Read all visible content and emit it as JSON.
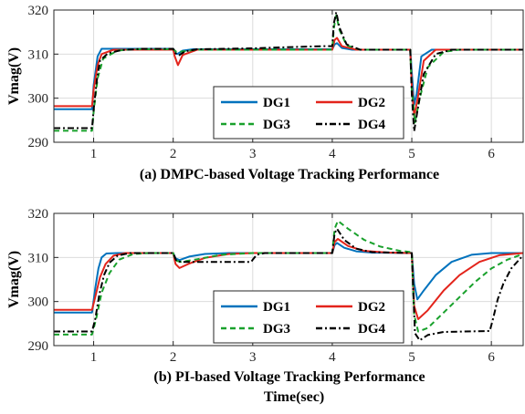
{
  "chart_data": [
    {
      "type": "line",
      "title": "(a) DMPC-based Voltage Tracking Performance",
      "ylabel": "Vmag(V)",
      "xlabel": "",
      "xlim": [
        0.5,
        6.4
      ],
      "ylim": [
        290,
        320
      ],
      "x_ticks": [
        "1",
        "2",
        "3",
        "4",
        "5",
        "6"
      ],
      "y_ticks": [
        "290",
        "300",
        "310",
        "320"
      ],
      "grid": true,
      "legend_position": "bottom-center",
      "series": [
        {
          "name": "DG1",
          "color": "#0072BD",
          "dash": "solid",
          "points": [
            [
              0.5,
              297.5
            ],
            [
              0.98,
              297.5
            ],
            [
              1.0,
              303
            ],
            [
              1.05,
              309.5
            ],
            [
              1.1,
              311.2
            ],
            [
              1.3,
              311.2
            ],
            [
              2.0,
              311.2
            ],
            [
              2.02,
              310.4
            ],
            [
              2.05,
              310.0
            ],
            [
              2.12,
              310.8
            ],
            [
              2.25,
              311.1
            ],
            [
              4.0,
              311.1
            ],
            [
              4.03,
              312.2
            ],
            [
              4.06,
              312.5
            ],
            [
              4.12,
              311.4
            ],
            [
              4.25,
              311.0
            ],
            [
              4.98,
              311.0
            ],
            [
              5.0,
              306
            ],
            [
              5.03,
              298.5
            ],
            [
              5.06,
              301
            ],
            [
              5.12,
              309.5
            ],
            [
              5.25,
              311.0
            ],
            [
              6.4,
              311.0
            ]
          ]
        },
        {
          "name": "DG2",
          "color": "#E3241B",
          "dash": "solid",
          "points": [
            [
              0.5,
              298.2
            ],
            [
              0.98,
              298.2
            ],
            [
              1.0,
              302
            ],
            [
              1.05,
              307.5
            ],
            [
              1.1,
              310
            ],
            [
              1.25,
              311
            ],
            [
              2.0,
              311.0
            ],
            [
              2.02,
              309.5
            ],
            [
              2.06,
              307.5
            ],
            [
              2.12,
              309.8
            ],
            [
              2.3,
              311.0
            ],
            [
              4.0,
              311.0
            ],
            [
              4.03,
              313.2
            ],
            [
              4.06,
              313.7
            ],
            [
              4.12,
              311.8
            ],
            [
              4.3,
              311.0
            ],
            [
              4.98,
              311.0
            ],
            [
              5.0,
              303
            ],
            [
              5.03,
              296
            ],
            [
              5.07,
              299.5
            ],
            [
              5.15,
              308.5
            ],
            [
              5.3,
              311.0
            ],
            [
              6.4,
              311.0
            ]
          ]
        },
        {
          "name": "DG3",
          "color": "#19A12C",
          "dash": "6,4",
          "points": [
            [
              0.5,
              292.6
            ],
            [
              0.98,
              292.6
            ],
            [
              1.0,
              297
            ],
            [
              1.05,
              304.5
            ],
            [
              1.12,
              309
            ],
            [
              1.3,
              310.8
            ],
            [
              1.5,
              311.1
            ],
            [
              2.0,
              311.1
            ],
            [
              2.04,
              310.5
            ],
            [
              2.12,
              310.6
            ],
            [
              2.3,
              311.0
            ],
            [
              4.0,
              311.0
            ],
            [
              4.02,
              316
            ],
            [
              4.05,
              318.8
            ],
            [
              4.09,
              315.5
            ],
            [
              4.18,
              312
            ],
            [
              4.35,
              311.0
            ],
            [
              4.98,
              311.0
            ],
            [
              5.0,
              302
            ],
            [
              5.04,
              294.5
            ],
            [
              5.1,
              300
            ],
            [
              5.2,
              307
            ],
            [
              5.4,
              310.5
            ],
            [
              5.6,
              311.0
            ],
            [
              6.4,
              311.0
            ]
          ]
        },
        {
          "name": "DG4",
          "color": "#000000",
          "dash": "7,3,2,3",
          "points": [
            [
              0.5,
              293.2
            ],
            [
              0.98,
              293.2
            ],
            [
              1.0,
              297.5
            ],
            [
              1.04,
              304
            ],
            [
              1.08,
              308.5
            ],
            [
              1.18,
              310.2
            ],
            [
              1.35,
              310.9
            ],
            [
              1.6,
              311.2
            ],
            [
              2.0,
              311.2
            ],
            [
              2.03,
              310.2
            ],
            [
              2.07,
              309.7
            ],
            [
              2.15,
              310.6
            ],
            [
              2.3,
              311.1
            ],
            [
              3.0,
              311.3
            ],
            [
              3.5,
              311.6
            ],
            [
              3.9,
              311.8
            ],
            [
              4.0,
              311.8
            ],
            [
              4.02,
              317
            ],
            [
              4.05,
              319.5
            ],
            [
              4.09,
              316
            ],
            [
              4.18,
              312.2
            ],
            [
              4.35,
              311.0
            ],
            [
              4.98,
              311.0
            ],
            [
              5.0,
              301
            ],
            [
              5.03,
              292.5
            ],
            [
              5.07,
              297
            ],
            [
              5.15,
              305.5
            ],
            [
              5.3,
              310
            ],
            [
              5.5,
              311.0
            ],
            [
              6.4,
              311.0
            ]
          ]
        }
      ]
    },
    {
      "type": "line",
      "title": "(b) PI-based Voltage Tracking Performance",
      "ylabel": "Vmag(V)",
      "xlabel": "Time(sec)",
      "xlim": [
        0.5,
        6.4
      ],
      "ylim": [
        290,
        320
      ],
      "x_ticks": [
        "1",
        "2",
        "3",
        "4",
        "5",
        "6"
      ],
      "y_ticks": [
        "290",
        "300",
        "310",
        "320"
      ],
      "grid": true,
      "legend_position": "bottom-center",
      "series": [
        {
          "name": "DG1",
          "color": "#0072BD",
          "dash": "solid",
          "points": [
            [
              0.5,
              297.5
            ],
            [
              0.98,
              297.5
            ],
            [
              1.02,
              303
            ],
            [
              1.06,
              307.5
            ],
            [
              1.1,
              310
            ],
            [
              1.16,
              310.9
            ],
            [
              1.3,
              311.0
            ],
            [
              2.0,
              311.0
            ],
            [
              2.03,
              309.8
            ],
            [
              2.08,
              309.4
            ],
            [
              2.2,
              310.2
            ],
            [
              2.4,
              310.8
            ],
            [
              2.7,
              311.0
            ],
            [
              4.0,
              311.0
            ],
            [
              4.03,
              312.8
            ],
            [
              4.06,
              313.3
            ],
            [
              4.15,
              312.2
            ],
            [
              4.3,
              311.4
            ],
            [
              4.5,
              311.1
            ],
            [
              5.0,
              311.0
            ],
            [
              5.03,
              304
            ],
            [
              5.07,
              300.5
            ],
            [
              5.15,
              302.5
            ],
            [
              5.3,
              306
            ],
            [
              5.5,
              309
            ],
            [
              5.75,
              310.6
            ],
            [
              6.0,
              311.0
            ],
            [
              6.4,
              311.0
            ]
          ]
        },
        {
          "name": "DG2",
          "color": "#E3241B",
          "dash": "solid",
          "points": [
            [
              0.5,
              298.1
            ],
            [
              0.98,
              298.1
            ],
            [
              1.02,
              301
            ],
            [
              1.08,
              305.5
            ],
            [
              1.15,
              308.5
            ],
            [
              1.25,
              310.4
            ],
            [
              1.4,
              311.0
            ],
            [
              2.0,
              311.0
            ],
            [
              2.03,
              308.5
            ],
            [
              2.08,
              307.6
            ],
            [
              2.2,
              308.6
            ],
            [
              2.4,
              309.9
            ],
            [
              2.7,
              310.8
            ],
            [
              3.0,
              311.0
            ],
            [
              4.0,
              311.0
            ],
            [
              4.03,
              313.5
            ],
            [
              4.07,
              314.2
            ],
            [
              4.2,
              312.6
            ],
            [
              4.4,
              311.5
            ],
            [
              4.7,
              311.1
            ],
            [
              5.0,
              311.0
            ],
            [
              5.03,
              299
            ],
            [
              5.08,
              296
            ],
            [
              5.2,
              298
            ],
            [
              5.4,
              302.5
            ],
            [
              5.6,
              306
            ],
            [
              5.85,
              309
            ],
            [
              6.1,
              310.5
            ],
            [
              6.4,
              311.0
            ]
          ]
        },
        {
          "name": "DG3",
          "color": "#19A12C",
          "dash": "6,4",
          "points": [
            [
              0.5,
              292.5
            ],
            [
              0.98,
              292.5
            ],
            [
              1.03,
              296
            ],
            [
              1.1,
              302
            ],
            [
              1.2,
              306.5
            ],
            [
              1.32,
              309.5
            ],
            [
              1.5,
              310.8
            ],
            [
              1.7,
              311.0
            ],
            [
              2.0,
              311.0
            ],
            [
              2.03,
              309.3
            ],
            [
              2.1,
              309.0
            ],
            [
              2.3,
              309.6
            ],
            [
              2.6,
              310.6
            ],
            [
              3.0,
              311.0
            ],
            [
              4.0,
              311.0
            ],
            [
              4.03,
              316.5
            ],
            [
              4.07,
              318.3
            ],
            [
              4.2,
              316.5
            ],
            [
              4.4,
              314
            ],
            [
              4.6,
              312.5
            ],
            [
              4.85,
              311.5
            ],
            [
              5.0,
              311.2
            ],
            [
              5.03,
              297
            ],
            [
              5.08,
              293.2
            ],
            [
              5.2,
              294
            ],
            [
              5.4,
              297.5
            ],
            [
              5.6,
              301
            ],
            [
              5.8,
              304.5
            ],
            [
              6.0,
              307.5
            ],
            [
              6.2,
              309.5
            ],
            [
              6.4,
              310.8
            ]
          ]
        },
        {
          "name": "DG4",
          "color": "#000000",
          "dash": "7,3,2,3",
          "points": [
            [
              0.5,
              293.2
            ],
            [
              0.98,
              293.2
            ],
            [
              1.02,
              296
            ],
            [
              1.07,
              301.5
            ],
            [
              1.13,
              306
            ],
            [
              1.2,
              308.8
            ],
            [
              1.3,
              310.4
            ],
            [
              1.45,
              311.0
            ],
            [
              2.0,
              311.0
            ],
            [
              2.04,
              309.2
            ],
            [
              2.1,
              309.0
            ],
            [
              2.3,
              309.0
            ],
            [
              2.98,
              309.0
            ],
            [
              3.0,
              309.5
            ],
            [
              3.05,
              310.6
            ],
            [
              3.15,
              311.0
            ],
            [
              4.0,
              311.0
            ],
            [
              4.03,
              315.5
            ],
            [
              4.06,
              316.5
            ],
            [
              4.15,
              314
            ],
            [
              4.3,
              312
            ],
            [
              4.5,
              311.2
            ],
            [
              5.0,
              311.0
            ],
            [
              5.04,
              292.8
            ],
            [
              5.1,
              291.2
            ],
            [
              5.2,
              292.4
            ],
            [
              5.4,
              293.1
            ],
            [
              5.98,
              293.3
            ],
            [
              6.02,
              296
            ],
            [
              6.08,
              300.5
            ],
            [
              6.15,
              304
            ],
            [
              6.25,
              307.5
            ],
            [
              6.4,
              310.5
            ]
          ]
        }
      ]
    }
  ]
}
